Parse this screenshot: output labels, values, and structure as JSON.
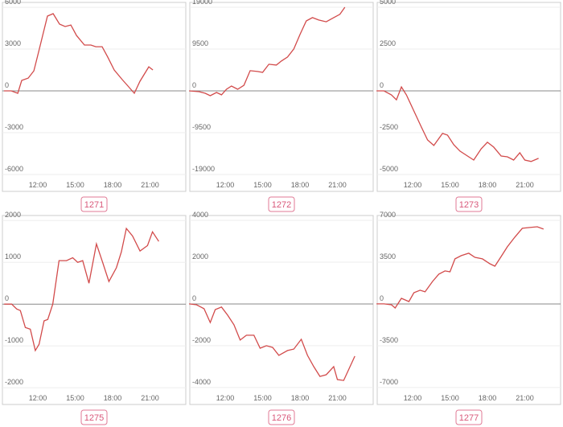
{
  "chart_data": [
    {
      "type": "line",
      "title": "1271",
      "color": "#d24b4b",
      "grid": true,
      "x": [
        9.29,
        9.87,
        10.39,
        10.71,
        11.23,
        11.68,
        12.06,
        12.77,
        13.23,
        13.74,
        14.19,
        14.65,
        15.1,
        15.74,
        16.26,
        16.65,
        17.16,
        17.61,
        18.13,
        18.77,
        19.29,
        19.74,
        20.19,
        20.9,
        21.23
      ],
      "values": [
        0,
        0,
        -170,
        750,
        920,
        1440,
        2770,
        5370,
        5540,
        4790,
        4620,
        4730,
        3980,
        3290,
        3290,
        3170,
        3170,
        2420,
        1500,
        810,
        290,
        -170,
        690,
        1730,
        1500
      ],
      "xlim": [
        9.16,
        23.87
      ],
      "xticks": [
        {
          "value": 12,
          "label": "12:00"
        },
        {
          "value": 15,
          "label": "15:00"
        },
        {
          "value": 18,
          "label": "18:00"
        },
        {
          "value": 21,
          "label": "21:00"
        }
      ],
      "ylim": [
        -6520,
        6350
      ],
      "yticks": [
        -6000,
        -3000,
        0,
        3000,
        6000
      ]
    },
    {
      "type": "line",
      "title": "1272",
      "color": "#d24b4b",
      "grid": true,
      "x": [
        9.1,
        9.9,
        10.4,
        10.8,
        11.3,
        11.7,
        12.1,
        12.5,
        13.0,
        13.5,
        14.0,
        14.6,
        15.0,
        15.5,
        16.1,
        16.5,
        17.0,
        17.5,
        18.0,
        18.5,
        19.0,
        19.5,
        20.1,
        20.7,
        21.2,
        21.6
      ],
      "values": [
        0,
        -180,
        -550,
        -1100,
        -370,
        -900,
        370,
        1100,
        370,
        1280,
        4580,
        4400,
        4200,
        6040,
        5860,
        6770,
        7690,
        9520,
        12800,
        15900,
        16650,
        16100,
        15700,
        16650,
        17400,
        19000
      ],
      "xlim": [
        9.16,
        23.87
      ],
      "xticks": [
        {
          "value": 12,
          "label": "12:00"
        },
        {
          "value": 15,
          "label": "15:00"
        },
        {
          "value": 18,
          "label": "18:00"
        },
        {
          "value": 21,
          "label": "21:00"
        }
      ],
      "ylim": [
        -20650,
        20100
      ],
      "yticks": [
        -19000,
        -9500,
        0,
        9500,
        19000
      ]
    },
    {
      "type": "line",
      "title": "1273",
      "color": "#d24b4b",
      "grid": true,
      "x": [
        9.1,
        9.7,
        10.3,
        10.7,
        11.1,
        11.5,
        12.1,
        12.7,
        13.2,
        13.7,
        14.4,
        14.8,
        15.3,
        15.8,
        16.5,
        16.9,
        17.5,
        18.0,
        18.5,
        19.1,
        19.6,
        20.1,
        20.6,
        21.0,
        21.5,
        22.1
      ],
      "values": [
        0,
        0,
        -240,
        -530,
        240,
        -240,
        -1200,
        -2160,
        -2930,
        -3260,
        -2540,
        -2640,
        -3220,
        -3600,
        -3940,
        -4130,
        -3460,
        -3070,
        -3360,
        -3890,
        -3940,
        -4130,
        -3700,
        -4130,
        -4220,
        -4030
      ],
      "xlim": [
        9.16,
        23.87
      ],
      "xticks": [
        {
          "value": 12,
          "label": "12:00"
        },
        {
          "value": 15,
          "label": "15:00"
        },
        {
          "value": 18,
          "label": "18:00"
        },
        {
          "value": 21,
          "label": "21:00"
        }
      ],
      "ylim": [
        -5430,
        5290
      ],
      "yticks": [
        -5000,
        -2500,
        0,
        2500,
        5000
      ]
    },
    {
      "type": "line",
      "title": "1275",
      "color": "#d24b4b",
      "grid": true,
      "x": [
        9.3,
        9.9,
        10.3,
        10.6,
        11.0,
        11.4,
        11.8,
        12.1,
        12.5,
        12.8,
        13.2,
        13.7,
        14.3,
        14.8,
        15.2,
        15.6,
        16.1,
        16.7,
        17.2,
        17.7,
        18.3,
        18.7,
        19.1,
        19.6,
        20.2,
        20.8,
        21.2,
        21.7
      ],
      "values": [
        0,
        0,
        -115,
        -154,
        -560,
        -600,
        -1110,
        -960,
        -400,
        -365,
        0,
        1040,
        1040,
        1110,
        1000,
        1040,
        500,
        1440,
        1000,
        540,
        870,
        1250,
        1810,
        1630,
        1270,
        1400,
        1730,
        1500
      ],
      "xlim": [
        9.16,
        23.87
      ],
      "xticks": [
        {
          "value": 12,
          "label": "12:00"
        },
        {
          "value": 15,
          "label": "15:00"
        },
        {
          "value": 18,
          "label": "18:00"
        },
        {
          "value": 21,
          "label": "21:00"
        }
      ],
      "ylim": [
        -2170,
        2120
      ],
      "yticks": [
        -2000,
        -1000,
        0,
        1000,
        2000
      ]
    },
    {
      "type": "line",
      "title": "1276",
      "color": "#d24b4b",
      "grid": true,
      "x": [
        9.1,
        9.7,
        10.3,
        10.8,
        11.2,
        11.7,
        12.2,
        12.7,
        13.2,
        13.7,
        14.3,
        14.8,
        15.3,
        15.8,
        16.3,
        17.0,
        17.5,
        18.1,
        18.6,
        19.1,
        19.6,
        20.1,
        20.7,
        21.0,
        21.5,
        22.4
      ],
      "values": [
        0,
        -40,
        -230,
        -890,
        -270,
        -150,
        -540,
        -1000,
        -1730,
        -1500,
        -1500,
        -2120,
        -2000,
        -2080,
        -2460,
        -2230,
        -2160,
        -1690,
        -2460,
        -3000,
        -3470,
        -3390,
        -3000,
        -3620,
        -3660,
        -2500
      ],
      "xlim": [
        9.16,
        23.87
      ],
      "xticks": [
        {
          "value": 12,
          "label": "12:00"
        },
        {
          "value": 15,
          "label": "15:00"
        },
        {
          "value": 18,
          "label": "18:00"
        },
        {
          "value": 21,
          "label": "21:00"
        }
      ],
      "ylim": [
        -4350,
        4230
      ],
      "yticks": [
        -4000,
        -2000,
        0,
        2000,
        4000
      ]
    },
    {
      "type": "line",
      "title": "1277",
      "color": "#d24b4b",
      "grid": true,
      "x": [
        9.1,
        9.7,
        10.3,
        10.6,
        11.1,
        11.7,
        12.1,
        12.6,
        13.0,
        13.6,
        14.1,
        14.6,
        15.0,
        15.4,
        15.9,
        16.5,
        17.0,
        17.6,
        18.2,
        18.6,
        19.1,
        19.6,
        20.2,
        20.8,
        21.4,
        22.0,
        22.5
      ],
      "values": [
        0,
        0,
        -70,
        -340,
        470,
        200,
        940,
        1150,
        1010,
        1880,
        2490,
        2760,
        2690,
        3770,
        4040,
        4240,
        3900,
        3770,
        3360,
        3160,
        3970,
        4780,
        5590,
        6330,
        6400,
        6460,
        6260
      ],
      "xlim": [
        9.16,
        23.87
      ],
      "xticks": [
        {
          "value": 12,
          "label": "12:00"
        },
        {
          "value": 15,
          "label": "15:00"
        },
        {
          "value": 18,
          "label": "18:00"
        },
        {
          "value": 21,
          "label": "21:00"
        }
      ],
      "ylim": [
        -7610,
        7400
      ],
      "yticks": [
        -7000,
        -3500,
        0,
        3500,
        7000
      ]
    }
  ]
}
